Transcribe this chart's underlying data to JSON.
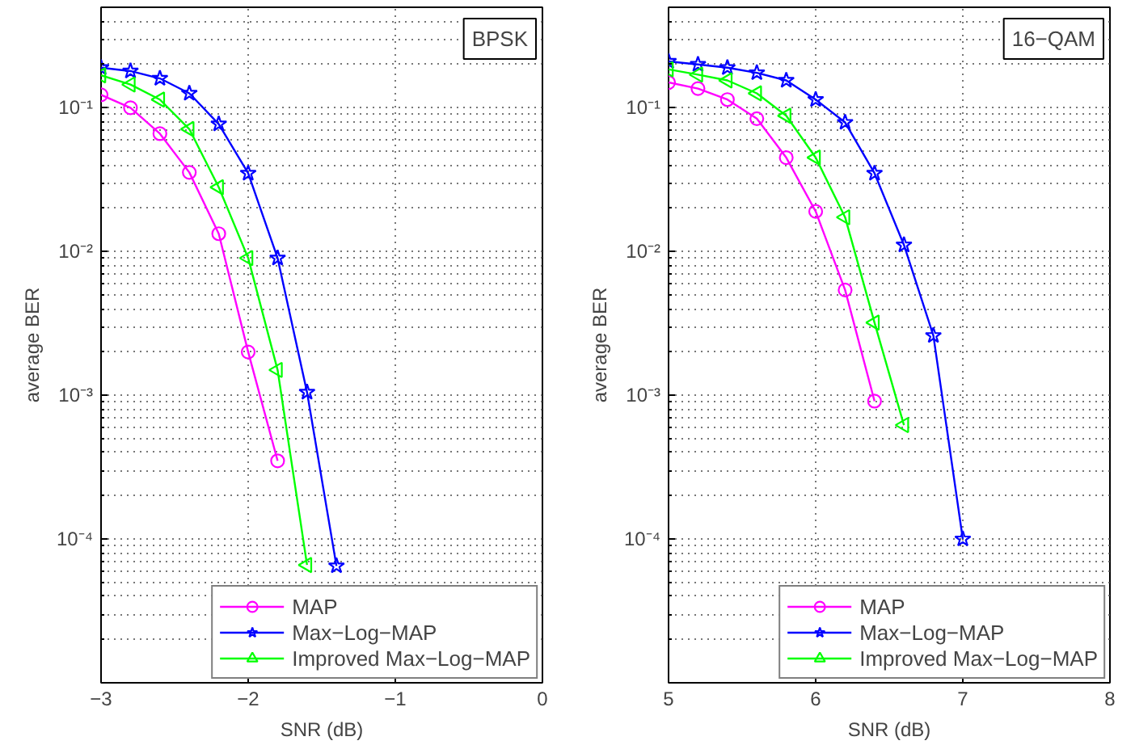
{
  "chart_data": [
    {
      "type": "line",
      "xlabel": "SNR (dB)",
      "ylabel": "average BER",
      "annotations": [
        "BPSK"
      ],
      "x": [
        -3,
        -2.8,
        -2.6,
        -2.4,
        -2.2,
        -2.0,
        -1.8,
        -1.6,
        -1.4
      ],
      "xlim": [
        -3,
        0
      ],
      "xticks": [
        -3,
        -2,
        -1,
        0
      ],
      "ylim": [
        1e-05,
        0.5
      ],
      "log": "y",
      "yticks": [
        {
          "value": 0.0001,
          "label": "10⁻⁴"
        },
        {
          "value": 0.001,
          "label": "10⁻³"
        },
        {
          "value": 0.01,
          "label": "10⁻²"
        },
        {
          "value": 0.1,
          "label": "10⁻¹"
        }
      ],
      "grid": true,
      "legend": "bottom right",
      "line_style": "solid",
      "series": [
        {
          "name": "MAP",
          "color": "#ff00ff",
          "marker": "circle",
          "values": [
            0.123,
            0.1,
            0.066,
            0.0355,
            0.0133,
            0.002,
            0.00035,
            null,
            null
          ]
        },
        {
          "name": "Max−Log−MAP",
          "color": "#0000ff",
          "marker": "star",
          "values": [
            0.19,
            0.18,
            0.16,
            0.126,
            0.077,
            0.035,
            0.009,
            0.00105,
            6.5e-05
          ]
        },
        {
          "name": "Improved Max−Log−MAP",
          "color": "#00ff00",
          "marker": "triangle",
          "values": [
            0.168,
            0.145,
            0.114,
            0.071,
            0.028,
            0.009,
            0.0015,
            6.6e-05,
            null
          ]
        }
      ]
    },
    {
      "type": "line",
      "xlabel": "SNR (dB)",
      "ylabel": "average BER",
      "annotations": [
        "16−QAM"
      ],
      "x": [
        5.0,
        5.2,
        5.4,
        5.6,
        5.8,
        6.0,
        6.2,
        6.4,
        6.6,
        6.8,
        7.0
      ],
      "xlim": [
        5,
        8
      ],
      "xticks": [
        5,
        6,
        7,
        8
      ],
      "ylim": [
        1e-05,
        0.5
      ],
      "log": "y",
      "yticks": [
        {
          "value": 0.0001,
          "label": "10⁻⁴"
        },
        {
          "value": 0.001,
          "label": "10⁻³"
        },
        {
          "value": 0.01,
          "label": "10⁻²"
        },
        {
          "value": 0.1,
          "label": "10⁻¹"
        }
      ],
      "grid": true,
      "legend": "bottom right",
      "line_style": "solid",
      "series": [
        {
          "name": "MAP",
          "color": "#ff00ff",
          "marker": "circle",
          "values": [
            0.15,
            0.136,
            0.114,
            0.084,
            0.045,
            0.019,
            0.0054,
            0.00091,
            null,
            null,
            null
          ]
        },
        {
          "name": "Max−Log−MAP",
          "color": "#0000ff",
          "marker": "star",
          "values": [
            0.21,
            0.2,
            0.19,
            0.175,
            0.155,
            0.114,
            0.079,
            0.035,
            0.0111,
            0.0026,
            0.0001
          ]
        },
        {
          "name": "Improved Max−Log−MAP",
          "color": "#00ff00",
          "marker": "triangle",
          "values": [
            0.185,
            0.17,
            0.155,
            0.126,
            0.088,
            0.045,
            0.0173,
            0.0032,
            0.00062,
            null,
            null
          ]
        }
      ]
    }
  ]
}
